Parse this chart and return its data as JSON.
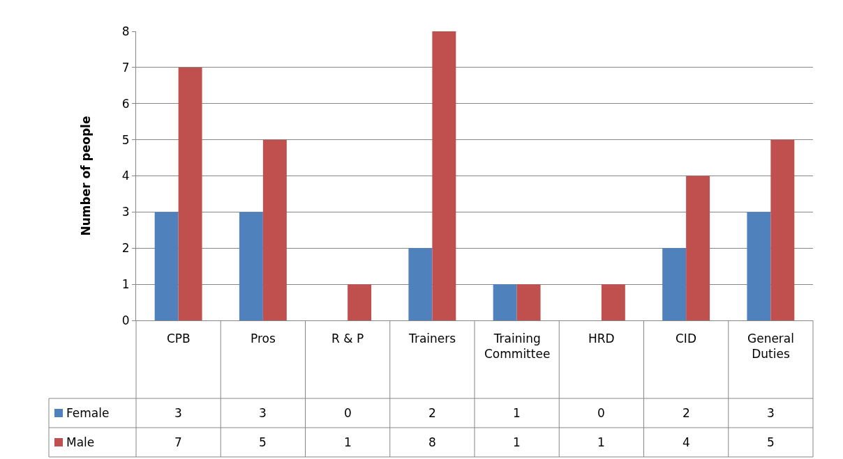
{
  "chart_data": {
    "type": "bar",
    "ylabel": "Number of people",
    "categories": [
      "CPB",
      "Pros",
      "R & P",
      "Trainers",
      "Training Committee",
      "HRD",
      "CID",
      "General Duties"
    ],
    "series": [
      {
        "name": "Female",
        "color": "#4f81bd",
        "values": [
          3,
          3,
          0,
          2,
          1,
          0,
          2,
          3
        ]
      },
      {
        "name": "Male",
        "color": "#c0504d",
        "values": [
          7,
          5,
          1,
          8,
          1,
          1,
          4,
          5
        ]
      }
    ],
    "ylim": [
      0,
      8
    ],
    "yticks": [
      0,
      1,
      2,
      3,
      4,
      5,
      6,
      7,
      8
    ],
    "grid": "y",
    "data_labels": true,
    "legend": "bottom left"
  }
}
